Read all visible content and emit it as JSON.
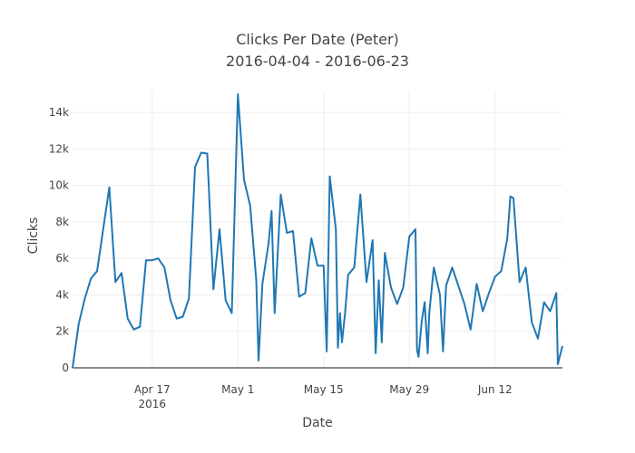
{
  "chart_data": {
    "type": "line",
    "title_line1": "Clicks Per Date (Peter)",
    "title_line2": "2016-04-04 - 2016-06-23",
    "xlabel": "Date",
    "ylabel": "Clicks",
    "xlim": [
      "2016-04-04",
      "2016-06-23"
    ],
    "ylim": [
      0,
      15200
    ],
    "grid": true,
    "legend": "none",
    "line_color": "#1f77b4",
    "y_ticks": [
      {
        "value": 0,
        "label": "0"
      },
      {
        "value": 2000,
        "label": "2k"
      },
      {
        "value": 4000,
        "label": "4k"
      },
      {
        "value": 6000,
        "label": "6k"
      },
      {
        "value": 8000,
        "label": "8k"
      },
      {
        "value": 10000,
        "label": "10k"
      },
      {
        "value": 12000,
        "label": "12k"
      },
      {
        "value": 14000,
        "label": "14k"
      }
    ],
    "x_ticks": [
      {
        "date": "2016-04-17",
        "label": "Apr 17",
        "sublabel": "2016"
      },
      {
        "date": "2016-05-01",
        "label": "May 1",
        "sublabel": ""
      },
      {
        "date": "2016-05-15",
        "label": "May 15",
        "sublabel": ""
      },
      {
        "date": "2016-05-29",
        "label": "May 29",
        "sublabel": ""
      },
      {
        "date": "2016-06-12",
        "label": "Jun 12",
        "sublabel": ""
      }
    ],
    "series": [
      {
        "points": [
          [
            "2016-04-04",
            0
          ],
          [
            "2016-04-05",
            2400
          ],
          [
            "2016-04-06",
            3800
          ],
          [
            "2016-04-07",
            4900
          ],
          [
            "2016-04-08",
            5300
          ],
          [
            "2016-04-09",
            7600
          ],
          [
            "2016-04-10",
            9900
          ],
          [
            "2016-04-11",
            4700
          ],
          [
            "2016-04-12",
            5200
          ],
          [
            "2016-04-13",
            2700
          ],
          [
            "2016-04-14",
            2100
          ],
          [
            "2016-04-15",
            2250
          ],
          [
            "2016-04-16",
            5900
          ],
          [
            "2016-04-17",
            5900
          ],
          [
            "2016-04-18",
            6000
          ],
          [
            "2016-04-19",
            5500
          ],
          [
            "2016-04-20",
            3700
          ],
          [
            "2016-04-21",
            2700
          ],
          [
            "2016-04-22",
            2800
          ],
          [
            "2016-04-23",
            3800
          ],
          [
            "2016-04-24",
            11000
          ],
          [
            "2016-04-25",
            11800
          ],
          [
            "2016-04-26",
            11750
          ],
          [
            "2016-04-27",
            4300
          ],
          [
            "2016-04-28",
            7600
          ],
          [
            "2016-04-29",
            3700
          ],
          [
            "2016-04-30",
            3000
          ],
          [
            "2016-05-01",
            15000
          ],
          [
            "2016-05-02",
            10300
          ],
          [
            "2016-05-03",
            8900
          ],
          [
            "2016-05-04",
            4800
          ],
          [
            "2016-05-04T09:00",
            400
          ],
          [
            "2016-05-05",
            4600
          ],
          [
            "2016-05-06",
            6800
          ],
          [
            "2016-05-06T12:00",
            8600
          ],
          [
            "2016-05-07",
            3000
          ],
          [
            "2016-05-08",
            9500
          ],
          [
            "2016-05-09",
            7400
          ],
          [
            "2016-05-10",
            7500
          ],
          [
            "2016-05-11",
            3900
          ],
          [
            "2016-05-12",
            4100
          ],
          [
            "2016-05-13",
            7100
          ],
          [
            "2016-05-14",
            5600
          ],
          [
            "2016-05-15",
            5600
          ],
          [
            "2016-05-15T12:00",
            900
          ],
          [
            "2016-05-16",
            10500
          ],
          [
            "2016-05-17",
            7600
          ],
          [
            "2016-05-17T08:00",
            1100
          ],
          [
            "2016-05-17T16:00",
            3000
          ],
          [
            "2016-05-18",
            1400
          ],
          [
            "2016-05-18T12:00",
            3000
          ],
          [
            "2016-05-19",
            5100
          ],
          [
            "2016-05-20",
            5500
          ],
          [
            "2016-05-21",
            9500
          ],
          [
            "2016-05-22",
            4700
          ],
          [
            "2016-05-23",
            7000
          ],
          [
            "2016-05-23T12:00",
            800
          ],
          [
            "2016-05-24",
            4800
          ],
          [
            "2016-05-24T12:00",
            1400
          ],
          [
            "2016-05-25",
            6300
          ],
          [
            "2016-05-26",
            4400
          ],
          [
            "2016-05-27",
            3500
          ],
          [
            "2016-05-28",
            4400
          ],
          [
            "2016-05-29",
            7200
          ],
          [
            "2016-05-30",
            7600
          ],
          [
            "2016-05-30T06:00",
            1000
          ],
          [
            "2016-05-30T12:00",
            600
          ],
          [
            "2016-05-31",
            2500
          ],
          [
            "2016-05-31T12:00",
            3600
          ],
          [
            "2016-06-01",
            800
          ],
          [
            "2016-06-01T06:00",
            3000
          ],
          [
            "2016-06-02",
            5500
          ],
          [
            "2016-06-03",
            4000
          ],
          [
            "2016-06-03T12:00",
            900
          ],
          [
            "2016-06-04",
            4500
          ],
          [
            "2016-06-05",
            5500
          ],
          [
            "2016-06-06",
            4500
          ],
          [
            "2016-06-07",
            3500
          ],
          [
            "2016-06-08",
            2100
          ],
          [
            "2016-06-09",
            4600
          ],
          [
            "2016-06-10",
            3100
          ],
          [
            "2016-06-11",
            4100
          ],
          [
            "2016-06-12",
            5000
          ],
          [
            "2016-06-13",
            5300
          ],
          [
            "2016-06-14",
            7100
          ],
          [
            "2016-06-14T12:00",
            9400
          ],
          [
            "2016-06-15",
            9300
          ],
          [
            "2016-06-16",
            4700
          ],
          [
            "2016-06-17",
            5500
          ],
          [
            "2016-06-18",
            2500
          ],
          [
            "2016-06-19",
            1600
          ],
          [
            "2016-06-20",
            3600
          ],
          [
            "2016-06-21",
            3100
          ],
          [
            "2016-06-22",
            4100
          ],
          [
            "2016-06-22T06:00",
            200
          ],
          [
            "2016-06-23",
            1200
          ]
        ]
      }
    ]
  }
}
